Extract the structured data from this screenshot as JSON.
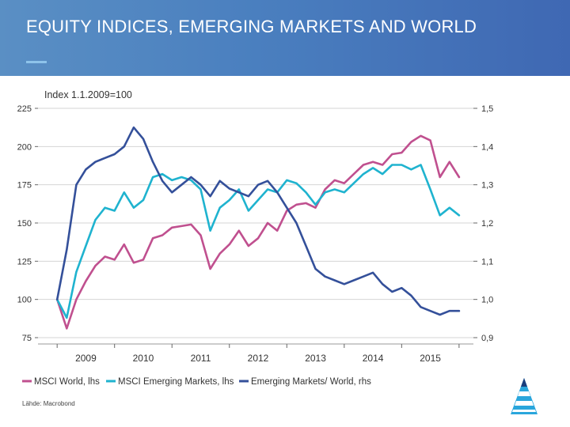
{
  "header": {
    "title": "EQUITY INDICES, EMERGING MARKETS AND WORLD"
  },
  "source_note": "Lähde: Macrobond",
  "colors": {
    "world": "#c0508f",
    "em": "#1fb3cf",
    "ratio": "#34509a",
    "header_bg": "#4a7fbf",
    "accent": "#8ec3ea"
  },
  "chart_data": {
    "type": "line",
    "subtitle": "Index 1.1.2009=100",
    "x_ticks": [
      "2009",
      "2010",
      "2011",
      "2012",
      "2013",
      "2014",
      "2015"
    ],
    "xlim": [
      "2008-09",
      "2016-04"
    ],
    "ylim_left": [
      75,
      225
    ],
    "y_ticks_left": [
      "225",
      "200",
      "175",
      "150",
      "125",
      "100",
      "75"
    ],
    "ylim_right": [
      0.9,
      1.5
    ],
    "y_ticks_right": [
      "1,5",
      "1,4",
      "1,3",
      "1,2",
      "1,1",
      "1,0",
      "0,9"
    ],
    "grid": true,
    "legend_position": "bottom",
    "series": [
      {
        "name": "MSCI World, lhs",
        "axis": "left",
        "x": [
          "2009-01",
          "2009-03",
          "2009-05",
          "2009-07",
          "2009-09",
          "2009-11",
          "2010-01",
          "2010-03",
          "2010-05",
          "2010-07",
          "2010-09",
          "2010-11",
          "2011-01",
          "2011-03",
          "2011-05",
          "2011-07",
          "2011-09",
          "2011-11",
          "2012-01",
          "2012-03",
          "2012-05",
          "2012-07",
          "2012-09",
          "2012-11",
          "2013-01",
          "2013-03",
          "2013-05",
          "2013-07",
          "2013-09",
          "2013-11",
          "2014-01",
          "2014-03",
          "2014-05",
          "2014-07",
          "2014-09",
          "2014-11",
          "2015-01",
          "2015-03",
          "2015-05",
          "2015-07",
          "2015-09",
          "2015-11",
          "2016-01"
        ],
        "values": [
          100,
          81,
          100,
          112,
          122,
          128,
          126,
          136,
          124,
          126,
          140,
          142,
          147,
          148,
          149,
          142,
          120,
          130,
          136,
          145,
          135,
          140,
          150,
          145,
          158,
          162,
          163,
          160,
          172,
          178,
          176,
          182,
          188,
          190,
          188,
          195,
          196,
          203,
          207,
          204,
          180,
          190,
          180
        ]
      },
      {
        "name": "MSCI Emerging Markets, lhs",
        "axis": "left",
        "x": [
          "2009-01",
          "2009-03",
          "2009-05",
          "2009-07",
          "2009-09",
          "2009-11",
          "2010-01",
          "2010-03",
          "2010-05",
          "2010-07",
          "2010-09",
          "2010-11",
          "2011-01",
          "2011-03",
          "2011-05",
          "2011-07",
          "2011-09",
          "2011-11",
          "2012-01",
          "2012-03",
          "2012-05",
          "2012-07",
          "2012-09",
          "2012-11",
          "2013-01",
          "2013-03",
          "2013-05",
          "2013-07",
          "2013-09",
          "2013-11",
          "2014-01",
          "2014-03",
          "2014-05",
          "2014-07",
          "2014-09",
          "2014-11",
          "2015-01",
          "2015-03",
          "2015-05",
          "2015-07",
          "2015-09",
          "2015-11",
          "2016-01"
        ],
        "values": [
          100,
          88,
          118,
          135,
          152,
          160,
          158,
          170,
          160,
          165,
          180,
          182,
          178,
          180,
          178,
          172,
          145,
          160,
          165,
          172,
          158,
          165,
          172,
          170,
          178,
          176,
          170,
          162,
          170,
          172,
          170,
          176,
          182,
          186,
          182,
          188,
          188,
          185,
          188,
          172,
          155,
          160,
          155
        ]
      },
      {
        "name": "Emerging Markets/ World, rhs",
        "axis": "right",
        "x": [
          "2009-01",
          "2009-03",
          "2009-05",
          "2009-07",
          "2009-09",
          "2009-11",
          "2010-01",
          "2010-03",
          "2010-05",
          "2010-07",
          "2010-09",
          "2010-11",
          "2011-01",
          "2011-03",
          "2011-05",
          "2011-07",
          "2011-09",
          "2011-11",
          "2012-01",
          "2012-03",
          "2012-05",
          "2012-07",
          "2012-09",
          "2012-11",
          "2013-01",
          "2013-03",
          "2013-05",
          "2013-07",
          "2013-09",
          "2013-11",
          "2014-01",
          "2014-03",
          "2014-05",
          "2014-07",
          "2014-09",
          "2014-11",
          "2015-01",
          "2015-03",
          "2015-05",
          "2015-07",
          "2015-09",
          "2015-11",
          "2016-01"
        ],
        "values": [
          1.0,
          1.13,
          1.3,
          1.34,
          1.36,
          1.37,
          1.38,
          1.4,
          1.45,
          1.42,
          1.36,
          1.31,
          1.28,
          1.3,
          1.32,
          1.3,
          1.27,
          1.31,
          1.29,
          1.28,
          1.27,
          1.3,
          1.31,
          1.28,
          1.24,
          1.2,
          1.14,
          1.08,
          1.06,
          1.05,
          1.04,
          1.05,
          1.06,
          1.07,
          1.04,
          1.02,
          1.03,
          1.01,
          0.98,
          0.97,
          0.96,
          0.97,
          0.97
        ]
      }
    ]
  }
}
